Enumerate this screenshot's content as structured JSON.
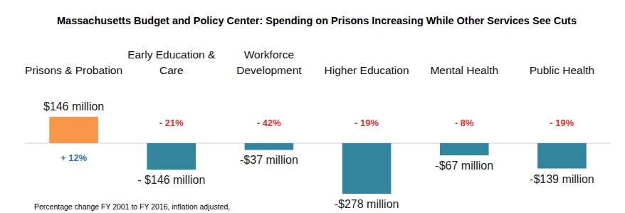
{
  "chart_data": {
    "type": "bar",
    "title": "Massachusetts Budget and Policy Center: Spending on Prisons Increasing While Other Services See Cuts",
    "categories": [
      "Prisons & Probation",
      "Early Education & Care",
      "Workforce Development",
      "Higher Education",
      "Mental Health",
      "Public Health"
    ],
    "values": [
      146,
      -146,
      -37,
      -278,
      -67,
      -139
    ],
    "value_labels": [
      "$146 million",
      "- $146 million",
      "-$37 million",
      "-$278 million",
      "-$67 million",
      "-$139 million"
    ],
    "colors": [
      "#f79646",
      "#31859c",
      "#31859c",
      "#31859c",
      "#31859c",
      "#31859c"
    ],
    "percent_changes": [
      12,
      -21,
      -42,
      -19,
      -8,
      -19
    ],
    "percent_change_labels": [
      "+ 12%",
      "- 21%",
      "- 42%",
      "- 19%",
      "- 8%",
      "- 19%"
    ],
    "note": "Percentage change FY 2001 to FY 2016, inflation adjusted,",
    "data_labels": true,
    "tick_labels": "x"
  }
}
